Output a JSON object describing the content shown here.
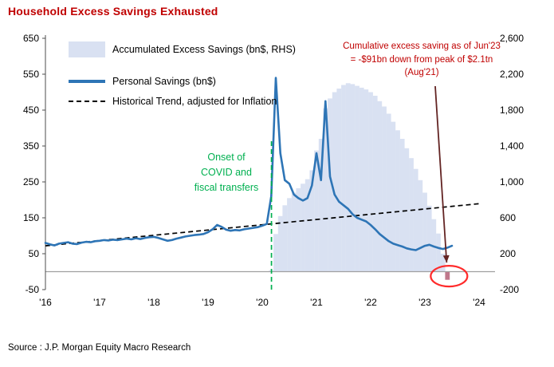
{
  "header": {
    "title": "Household Excess Savings Exhausted"
  },
  "footer": {
    "source": "Source : J.P. Morgan Equity Macro Research"
  },
  "chart_data": {
    "type": "combo",
    "title": "Household Excess Savings Exhausted",
    "colors": {
      "area": "#D9E1F2",
      "area_negative": "#C0788C",
      "line": "#2E75B6",
      "trend": "#000000",
      "zero_line": "#A0A0A0",
      "axis": "#4d4d4d",
      "green": "#00B050",
      "annotation_red": "#C00000",
      "arrow": "#632423",
      "ellipse": "#FF2B2B"
    },
    "legend": [
      {
        "label": "Accumulated Excess Savings (bn$, RHS)",
        "swatch": "area"
      },
      {
        "label": "Personal Savings (bn$)",
        "swatch": "line"
      },
      {
        "label": "Historical Trend, adjusted for Inflation",
        "swatch": "dashed"
      }
    ],
    "x_axis": {
      "range": [
        2015.9,
        2024.3
      ],
      "ticks": [
        2016,
        2017,
        2018,
        2019,
        2020,
        2021,
        2022,
        2023,
        2024
      ],
      "tick_labels": [
        "'16",
        "'17",
        "'18",
        "'19",
        "'20",
        "'21",
        "'22",
        "'23",
        "'24"
      ]
    },
    "y_left": {
      "range": [
        -50,
        650
      ],
      "ticks": [
        650,
        550,
        450,
        350,
        250,
        150,
        50,
        -50
      ]
    },
    "y_right": {
      "range": [
        -200,
        2600
      ],
      "ticks": [
        2600,
        2200,
        1800,
        1400,
        1000,
        600,
        200,
        -200
      ],
      "tick_labels": [
        "2,600",
        "2,200",
        "1,800",
        "1,400",
        "1,000",
        "600",
        "200",
        "-200"
      ]
    },
    "series": [
      {
        "name": "Accumulated Excess Savings (bn$, RHS)",
        "type": "bar-area",
        "axis": "right",
        "x_start": 2020.166667,
        "x_step": 0.083333,
        "values": [
          15,
          420,
          620,
          740,
          820,
          880,
          930,
          980,
          1030,
          1130,
          1350,
          1480,
          1820,
          1930,
          2000,
          2040,
          2080,
          2100,
          2090,
          2070,
          2050,
          2030,
          2000,
          1960,
          1900,
          1840,
          1760,
          1670,
          1575,
          1480,
          1375,
          1265,
          1145,
          1020,
          880,
          735,
          585,
          425,
          200,
          -91
        ]
      },
      {
        "name": "Personal Savings (bn$)",
        "type": "line",
        "axis": "left",
        "x_start": 2016.0,
        "x_step": 0.083333,
        "values": [
          80,
          76,
          73,
          78,
          80,
          82,
          78,
          77,
          81,
          83,
          82,
          85,
          86,
          88,
          87,
          89,
          88,
          90,
          92,
          90,
          93,
          91,
          94,
          96,
          97,
          94,
          90,
          86,
          88,
          92,
          95,
          98,
          100,
          102,
          103,
          105,
          110,
          118,
          130,
          125,
          117,
          114,
          116,
          115,
          118,
          120,
          122,
          124,
          128,
          133,
          210,
          540,
          330,
          255,
          245,
          215,
          205,
          198,
          205,
          240,
          330,
          255,
          475,
          265,
          215,
          195,
          185,
          175,
          160,
          150,
          145,
          140,
          130,
          118,
          105,
          95,
          85,
          78,
          74,
          70,
          65,
          62,
          60,
          66,
          72,
          75,
          70,
          66,
          63,
          67,
          72
        ]
      },
      {
        "name": "Historical Trend, adjusted for Inflation",
        "type": "dashed-line",
        "axis": "left",
        "x": [
          2016.0,
          2024.05
        ],
        "values": [
          72,
          190
        ]
      }
    ],
    "annotations": {
      "covid": {
        "text": "Onset of COVID and fiscal transfers",
        "color": "#00B050",
        "line_x": 2020.17
      },
      "exhausted": {
        "text": "Cumulative excess saving as of Jun'23 = -$91bn down from peak of $2.1tn (Aug'21)",
        "color": "#C00000",
        "target_x": 2023.4167,
        "target_value_rhs": -91
      }
    }
  }
}
